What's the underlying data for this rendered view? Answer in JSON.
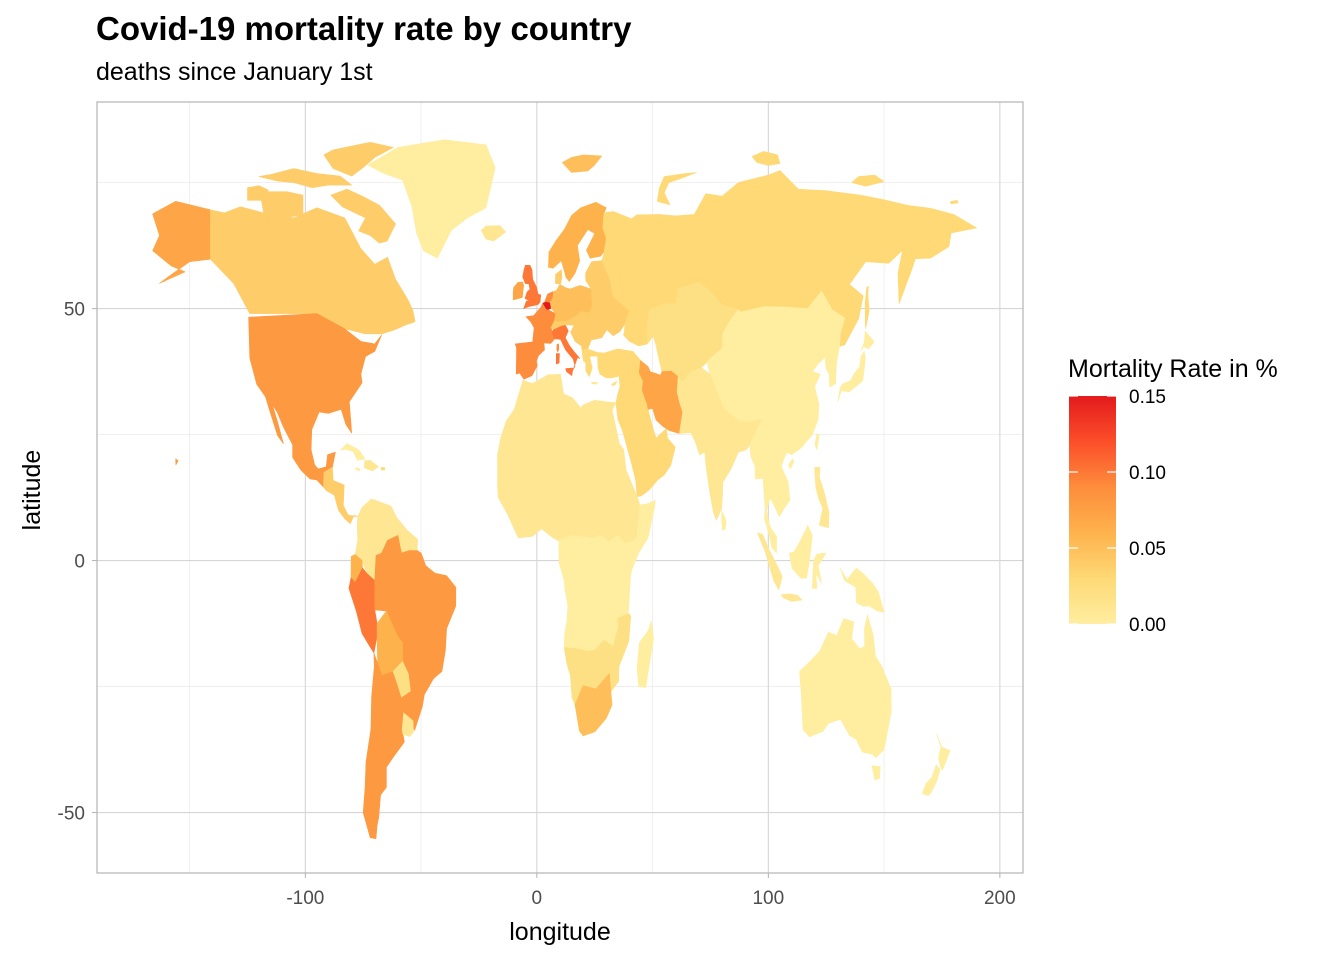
{
  "title": "Covid-19 mortality rate by country",
  "subtitle": "deaths since January 1st",
  "chart_data": {
    "type": "choropleth",
    "title": "Covid-19 mortality rate by country",
    "subtitle": "deaths since January 1st",
    "xlabel": "longitude",
    "ylabel": "latitude",
    "xlim": [
      -190,
      210
    ],
    "ylim": [
      -62,
      91
    ],
    "x_ticks": [
      -100,
      0,
      100,
      200
    ],
    "y_ticks": [
      -50,
      0,
      50
    ],
    "x_tick_labels": [
      "-100",
      "0",
      "100",
      "200"
    ],
    "y_tick_labels": [
      "-50",
      "0",
      "50"
    ],
    "grid": true,
    "legend": {
      "title": "Mortality Rate in %",
      "placement": "right",
      "range": [
        0,
        0.15
      ],
      "breaks": [
        0.15,
        0.1,
        0.05,
        0.0
      ],
      "labels": [
        "0.15",
        "0.10",
        "0.05",
        "0.00"
      ],
      "colors": [
        "#FFEDA0",
        "#FED976",
        "#FEB24C",
        "#FD8D3C",
        "#FC4E2A",
        "#E31A1C"
      ]
    },
    "regions": [
      {
        "name": "Alaska",
        "value": 0.07
      },
      {
        "name": "Canada",
        "value": 0.04
      },
      {
        "name": "Greenland",
        "value": 0.0
      },
      {
        "name": "United States",
        "value": 0.08
      },
      {
        "name": "Mexico",
        "value": 0.08
      },
      {
        "name": "Central America",
        "value": 0.04
      },
      {
        "name": "Colombia / Venezuela",
        "value": 0.01
      },
      {
        "name": "Ecuador",
        "value": 0.06
      },
      {
        "name": "Peru",
        "value": 0.1
      },
      {
        "name": "Brazil",
        "value": 0.08
      },
      {
        "name": "Bolivia",
        "value": 0.06
      },
      {
        "name": "Chile",
        "value": 0.08
      },
      {
        "name": "Argentina",
        "value": 0.08
      },
      {
        "name": "Uruguay",
        "value": 0.01
      },
      {
        "name": "United Kingdom",
        "value": 0.1
      },
      {
        "name": "Ireland",
        "value": 0.07
      },
      {
        "name": "Iberia",
        "value": 0.09
      },
      {
        "name": "France",
        "value": 0.09
      },
      {
        "name": "Belgium",
        "value": 0.15
      },
      {
        "name": "Italy",
        "value": 0.1
      },
      {
        "name": "Scandinavia",
        "value": 0.06
      },
      {
        "name": "Central Europe",
        "value": 0.05
      },
      {
        "name": "Eastern Europe",
        "value": 0.04
      },
      {
        "name": "Russia",
        "value": 0.03
      },
      {
        "name": "Kazakhstan / Central Asia",
        "value": 0.02
      },
      {
        "name": "Mongolia / China",
        "value": 0.0
      },
      {
        "name": "Middle East",
        "value": 0.03
      },
      {
        "name": "Iran",
        "value": 0.07
      },
      {
        "name": "South Asia",
        "value": 0.01
      },
      {
        "name": "Southeast Asia",
        "value": 0.0
      },
      {
        "name": "Indonesia",
        "value": 0.01
      },
      {
        "name": "Philippines",
        "value": 0.01
      },
      {
        "name": "Japan",
        "value": 0.0
      },
      {
        "name": "Korea",
        "value": 0.0
      },
      {
        "name": "North Africa",
        "value": 0.01
      },
      {
        "name": "Central Africa",
        "value": 0.0
      },
      {
        "name": "Southern Africa",
        "value": 0.02
      },
      {
        "name": "South Africa",
        "value": 0.05
      },
      {
        "name": "Madagascar",
        "value": 0.0
      },
      {
        "name": "Australia",
        "value": 0.0
      },
      {
        "name": "New Zealand",
        "value": 0.0
      },
      {
        "name": "Iceland",
        "value": 0.01
      }
    ]
  }
}
